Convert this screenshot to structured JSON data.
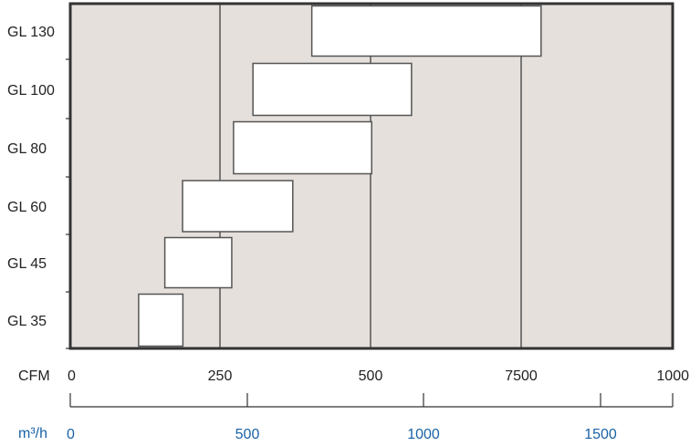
{
  "colors": {
    "plot_background": "#e6e0dc",
    "plot_border": "#333333",
    "grid_line": "#555555",
    "bar_fill": "#ffffff",
    "bar_stroke": "#555555",
    "cfm_text": "#222222",
    "m3h_text": "#1a62a6"
  },
  "chart_data": {
    "type": "bar",
    "orientation": "horizontal",
    "style": "floating range bars",
    "grid": "vertical lines at 250, 500 and 7500 CFM ticks",
    "categories": [
      "GL 130",
      "GL 100",
      "GL 80",
      "GL 60",
      "GL 45",
      "GL 35"
    ],
    "series": [
      {
        "ranges_m3h": [
          [
            683,
            1332
          ],
          [
            516,
            966
          ],
          [
            461,
            853
          ],
          [
            317,
            629
          ],
          [
            267,
            456
          ],
          [
            193,
            318
          ]
        ]
      }
    ],
    "x_axis_cfm": {
      "label": "CFM",
      "tick_labels": [
        "0",
        "250",
        "500",
        "7500",
        "1000"
      ]
    },
    "x_axis_m3h": {
      "label": "m³/h",
      "tick_labels": [
        "0",
        "500",
        "1000",
        "1500"
      ],
      "tick_values": [
        0,
        500,
        1000,
        1500
      ],
      "range": [
        0,
        1700
      ]
    }
  }
}
